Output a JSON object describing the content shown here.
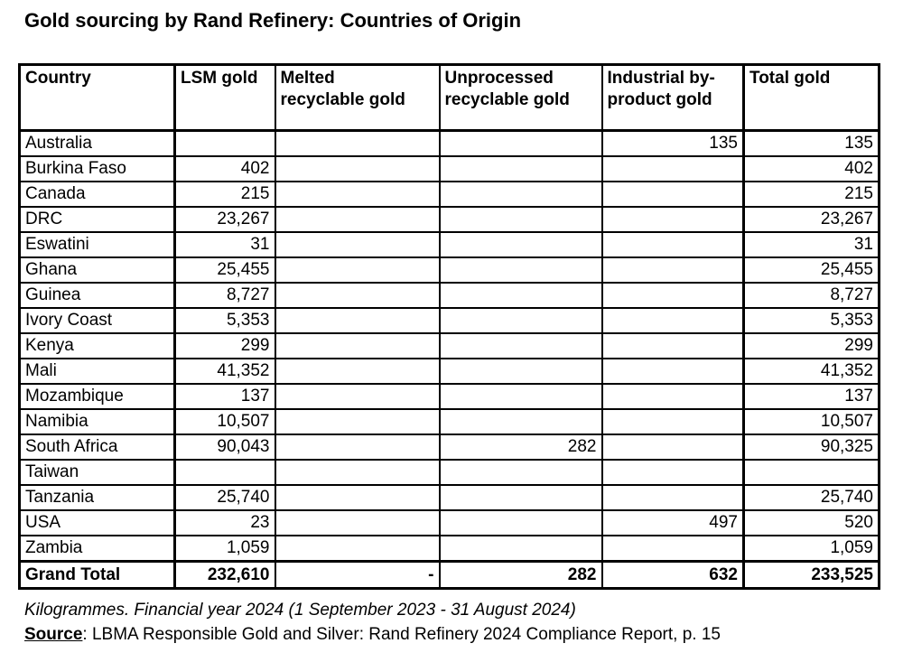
{
  "title": "Gold sourcing by Rand Refinery: Countries of Origin",
  "table": {
    "columns": [
      "Country",
      "LSM gold",
      "Melted\nrecyclable gold",
      "Unprocessed\nrecyclable gold",
      "Industrial by-\nproduct gold",
      "Total gold"
    ],
    "rows": [
      [
        "Australia",
        "",
        "",
        "",
        "135",
        "135"
      ],
      [
        "Burkina Faso",
        "402",
        "",
        "",
        "",
        "402"
      ],
      [
        "Canada",
        "215",
        "",
        "",
        "",
        "215"
      ],
      [
        "DRC",
        "23,267",
        "",
        "",
        "",
        "23,267"
      ],
      [
        "Eswatini",
        "31",
        "",
        "",
        "",
        "31"
      ],
      [
        "Ghana",
        "25,455",
        "",
        "",
        "",
        "25,455"
      ],
      [
        "Guinea",
        "8,727",
        "",
        "",
        "",
        "8,727"
      ],
      [
        "Ivory Coast",
        "5,353",
        "",
        "",
        "",
        "5,353"
      ],
      [
        "Kenya",
        "299",
        "",
        "",
        "",
        "299"
      ],
      [
        "Mali",
        "41,352",
        "",
        "",
        "",
        "41,352"
      ],
      [
        "Mozambique",
        "137",
        "",
        "",
        "",
        "137"
      ],
      [
        "Namibia",
        "10,507",
        "",
        "",
        "",
        "10,507"
      ],
      [
        "South Africa",
        "90,043",
        "",
        "282",
        "",
        "90,325"
      ],
      [
        "Taiwan",
        "",
        "",
        "",
        "",
        ""
      ],
      [
        "Tanzania",
        "25,740",
        "",
        "",
        "",
        "25,740"
      ],
      [
        "USA",
        "23",
        "",
        "",
        "497",
        "520"
      ],
      [
        "Zambia",
        "1,059",
        "",
        "",
        "",
        "1,059"
      ]
    ],
    "grand_total": [
      "Grand Total",
      "232,610",
      "-",
      "282",
      "632",
      "233,525"
    ]
  },
  "footnote": "Kilogrammes. Financial year 2024 (1 September 2023 - 31 August 2024)",
  "source": {
    "label": "Source",
    "text": ": LBMA Responsible Gold and Silver: Rand Refinery 2024 Compliance Report, p. 15"
  },
  "colors": {
    "text": "#000000",
    "background": "#ffffff",
    "border": "#000000"
  }
}
